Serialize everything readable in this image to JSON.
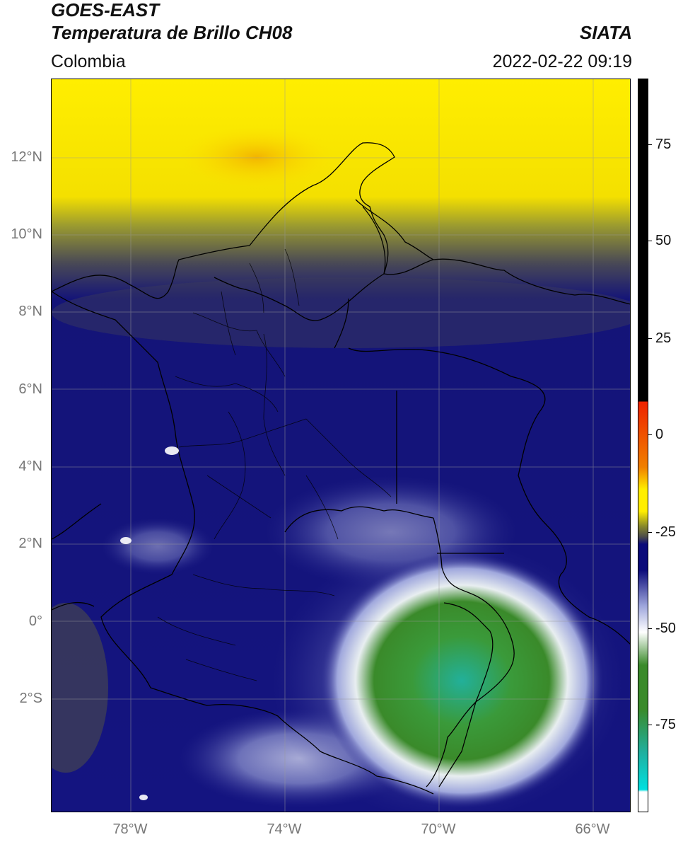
{
  "header": {
    "title_line1": "GOES-EAST",
    "title_line2": "Temperatura de Brillo CH08",
    "organization": "SIATA",
    "region": "Colombia",
    "timestamp": "2022-02-22 09:19"
  },
  "map": {
    "lat_ticks": [
      {
        "label": "12°N",
        "value": 12
      },
      {
        "label": "10°N",
        "value": 10
      },
      {
        "label": "8°N",
        "value": 8
      },
      {
        "label": "6°N",
        "value": 6
      },
      {
        "label": "4°N",
        "value": 4
      },
      {
        "label": "2°N",
        "value": 2
      },
      {
        "label": "0°",
        "value": 0
      },
      {
        "label": "2°S",
        "value": -2
      }
    ],
    "lon_ticks": [
      {
        "label": "78°W",
        "value": -78
      },
      {
        "label": "74°W",
        "value": -74
      },
      {
        "label": "70°W",
        "value": -70
      },
      {
        "label": "66°W",
        "value": -66
      }
    ],
    "extent": {
      "lon_min": -80,
      "lon_max": -65,
      "lat_min": -5,
      "lat_max": 14
    },
    "grid": true
  },
  "colorbar": {
    "ticks": [
      {
        "label": "75",
        "value": 75
      },
      {
        "label": "50",
        "value": 50
      },
      {
        "label": "25",
        "value": 25
      },
      {
        "label": "0",
        "value": 0
      },
      {
        "label": "-25",
        "value": -25
      },
      {
        "label": "-50",
        "value": -50
      },
      {
        "label": "-75",
        "value": -75
      }
    ],
    "range": [
      -95,
      90
    ],
    "colors": {
      "black": "#000000",
      "red": "#ee2200",
      "orange": "#f08000",
      "yellow": "#ffee00",
      "olive": "#8a8a2a",
      "dark_gray": "#4a4a4a",
      "navy": "#0a0a7a",
      "lavender": "#a0a8dd",
      "white": "#ffffff",
      "green": "#3a8a2a",
      "teal": "#20b0a0",
      "cyan": "#00e0e0"
    }
  }
}
